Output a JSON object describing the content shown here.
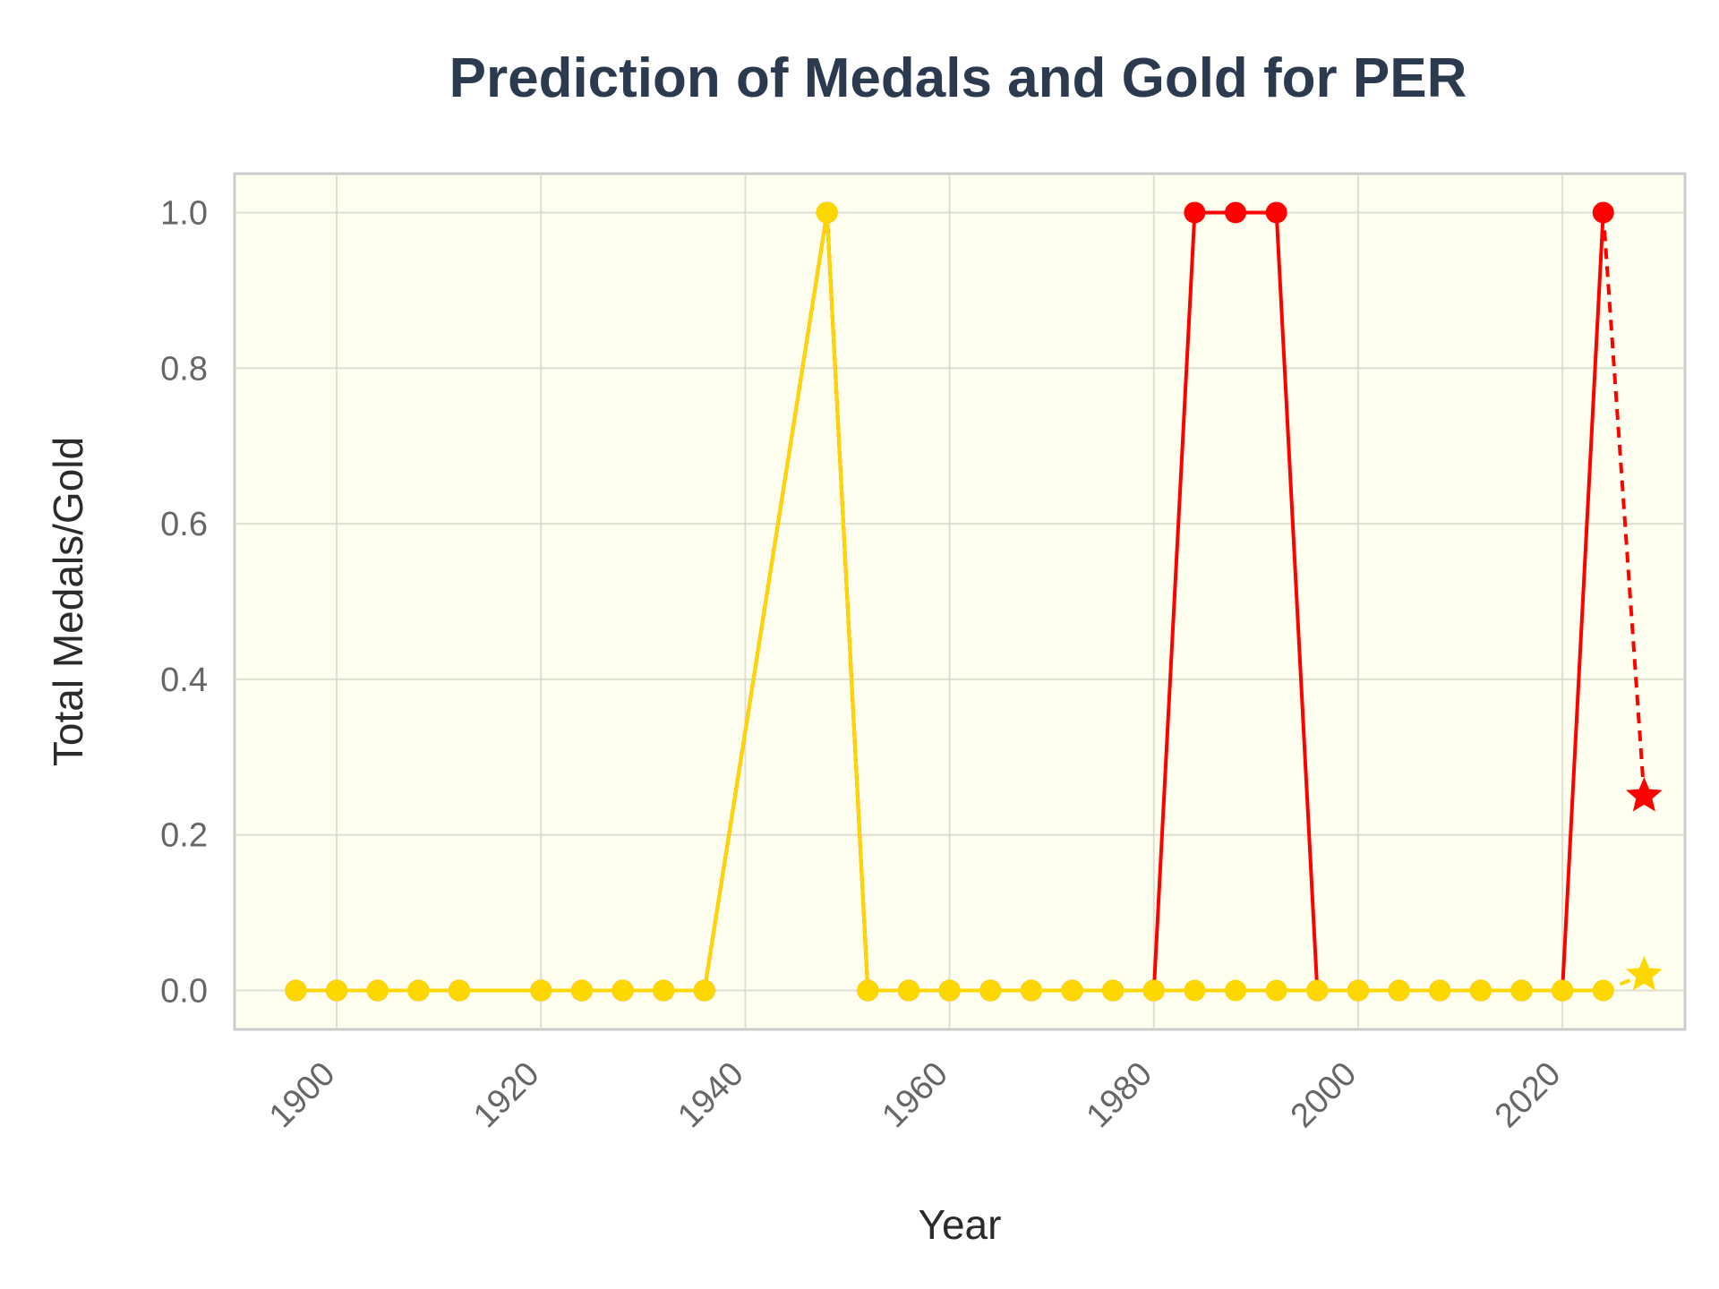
{
  "chart_data": {
    "type": "line",
    "title": "Prediction of Medals and Gold for PER",
    "xlabel": "Year",
    "ylabel": "Total Medals/Gold",
    "xlim": [
      1890,
      2032
    ],
    "ylim": [
      -0.05,
      1.05
    ],
    "x_ticks": [
      1900,
      1920,
      1940,
      1960,
      1980,
      2000,
      2020
    ],
    "y_ticks": [
      0.0,
      0.2,
      0.4,
      0.6,
      0.8,
      1.0
    ],
    "y_tick_labels": [
      "0.0",
      "0.2",
      "0.4",
      "0.6",
      "0.8",
      "1.0"
    ],
    "grid": true,
    "background_color": "#fffff0",
    "series": [
      {
        "color": "#ff0000",
        "style": "solid",
        "marker": "circle",
        "x": [
          1896,
          1900,
          1904,
          1908,
          1912,
          1920,
          1924,
          1928,
          1932,
          1936,
          1948,
          1952,
          1956,
          1960,
          1964,
          1968,
          1972,
          1976,
          1980,
          1984,
          1988,
          1992,
          1996,
          2000,
          2004,
          2008,
          2012,
          2016,
          2020,
          2024
        ],
        "y": [
          0,
          0,
          0,
          0,
          0,
          0,
          0,
          0,
          0,
          0,
          1,
          0,
          0,
          0,
          0,
          0,
          0,
          0,
          0,
          1,
          1,
          1,
          0,
          0,
          0,
          0,
          0,
          0,
          0,
          1
        ]
      },
      {
        "color": "#ff0000",
        "style": "dashed",
        "marker": "star",
        "x": [
          2024,
          2028
        ],
        "y": [
          1,
          0.25
        ]
      },
      {
        "color": "#ffd700",
        "style": "solid",
        "marker": "circle",
        "x": [
          1896,
          1900,
          1904,
          1908,
          1912,
          1920,
          1924,
          1928,
          1932,
          1936,
          1948,
          1952,
          1956,
          1960,
          1964,
          1968,
          1972,
          1976,
          1980,
          1984,
          1988,
          1992,
          1996,
          2000,
          2004,
          2008,
          2012,
          2016,
          2020,
          2024
        ],
        "y": [
          0,
          0,
          0,
          0,
          0,
          0,
          0,
          0,
          0,
          0,
          1,
          0,
          0,
          0,
          0,
          0,
          0,
          0,
          0,
          0,
          0,
          0,
          0,
          0,
          0,
          0,
          0,
          0,
          0,
          0
        ]
      },
      {
        "color": "#ffd700",
        "style": "dashed",
        "marker": "star",
        "x": [
          2024,
          2028
        ],
        "y": [
          0,
          0.02
        ]
      }
    ]
  }
}
